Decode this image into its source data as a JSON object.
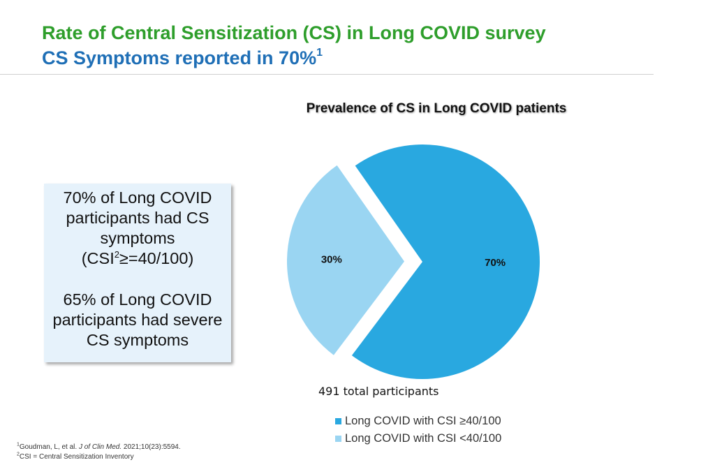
{
  "header": {
    "title": "Rate of Central Sensitization (CS) in Long COVID survey",
    "subtitle": "CS Symptoms reported in 70%",
    "subtitle_sup": "1"
  },
  "callout": {
    "para1": "70% of Long COVID participants had CS symptoms",
    "csi_prefix": "(CSI",
    "csi_sup": "2",
    "csi_suffix": "≥=40/100)",
    "para2": "65% of Long COVID participants had severe CS symptoms"
  },
  "chart_data": {
    "type": "pie",
    "title": "Prevalence of CS in Long COVID patients",
    "slices": [
      {
        "label": "Long COVID with CSI ≥40/100",
        "value": 70,
        "data_label": "70%",
        "color": "#29a8e0",
        "exploded": false
      },
      {
        "label": "Long COVID with CSI <40/100",
        "value": 30,
        "data_label": "30%",
        "color": "#9ad5f2",
        "exploded": true
      }
    ],
    "annotation": "491 total participants",
    "legend_position": "bottom"
  },
  "footnotes": {
    "f1_sup": "1",
    "f1_authors": "Goudman, L, et al. ",
    "f1_journal": "J of Clin Med.",
    "f1_rest": " 2021;10(23):5594.",
    "f2_sup": "2",
    "f2_text": "CSI = Central Sensitization Inventory"
  }
}
